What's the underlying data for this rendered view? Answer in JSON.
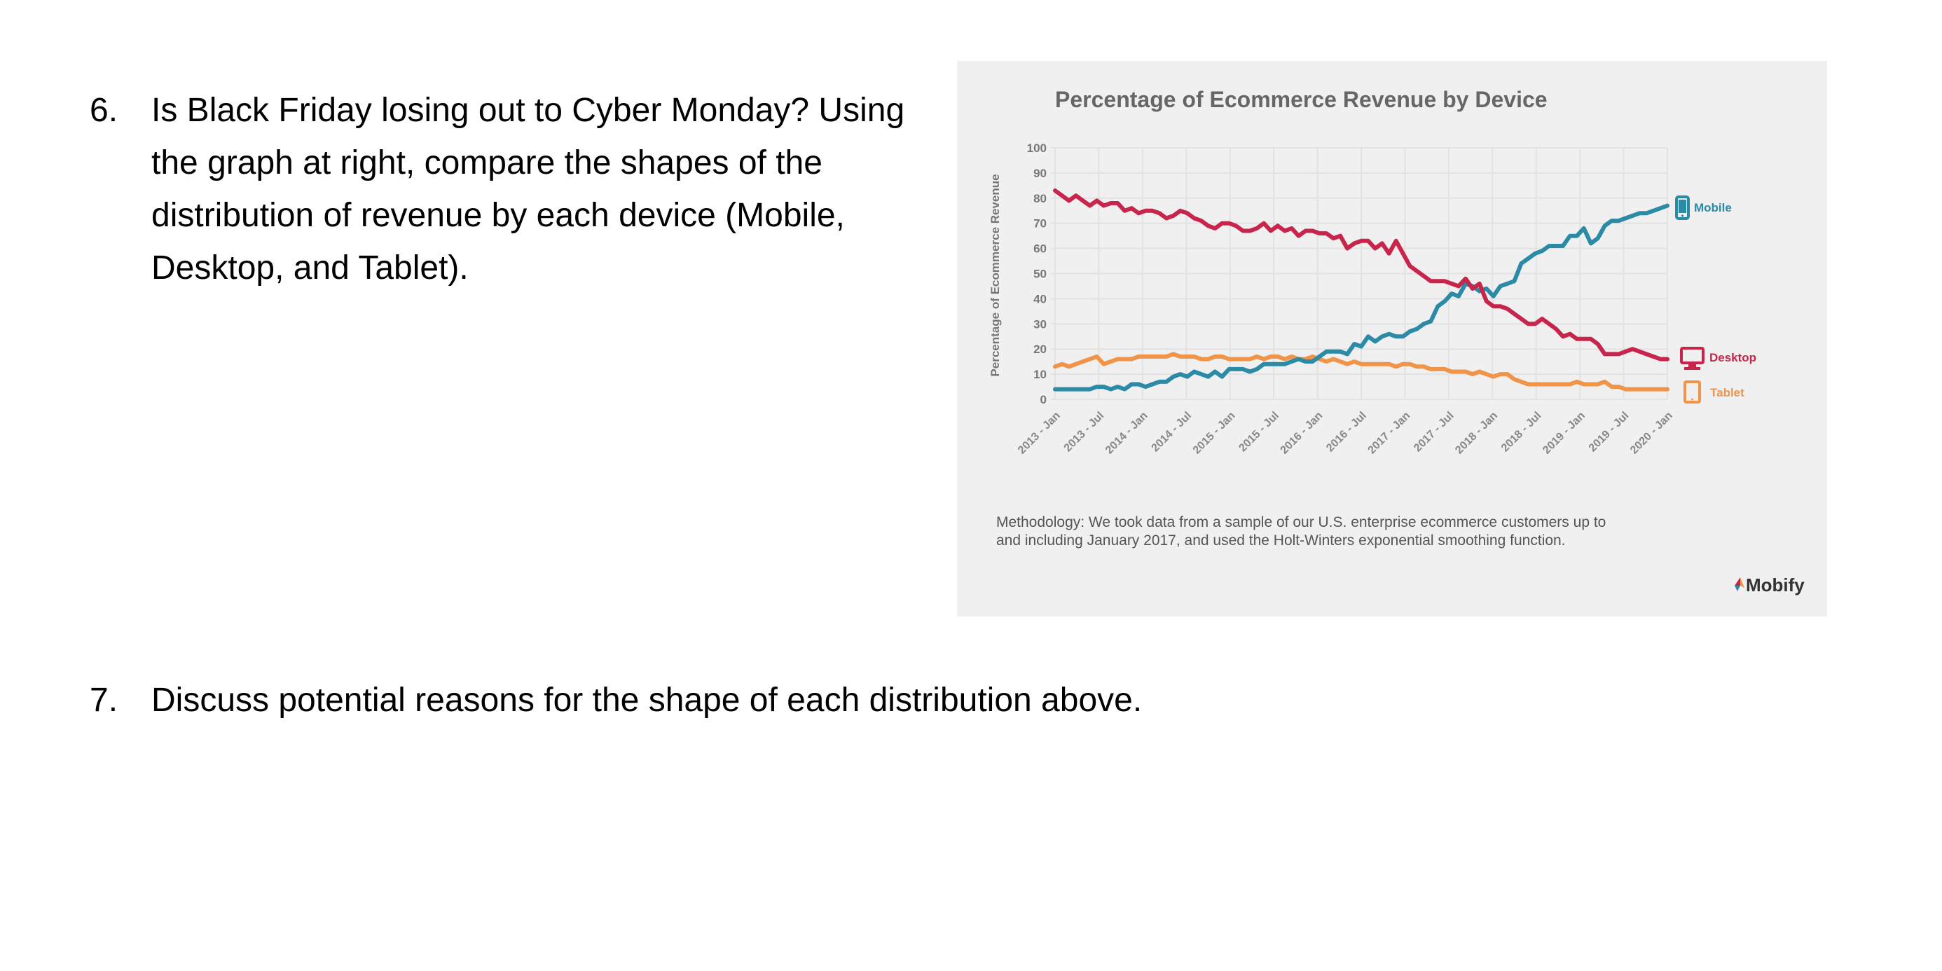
{
  "questions": [
    {
      "number": "6.",
      "text": "Is Black Friday losing out to Cyber Monday? Using the graph at right, compare the shapes of the distribution of revenue by each device (Mobile, Desktop, and Tablet)."
    },
    {
      "number": "7.",
      "text": "Discuss potential reasons for the shape of each distribution above."
    }
  ],
  "methodology": [
    "Methodology: We took data from a sample of our U.S. enterprise ecommerce customers up to",
    "and including January 2017, and used the Holt-Winters exponential smoothing function."
  ],
  "brand": "Mobify",
  "colors": {
    "mobile": "#2b8aa5",
    "desktop": "#c7254b",
    "tablet": "#f0944a",
    "panel": "#f0f0f0",
    "title": "#666666",
    "grid": "#e2e2e2"
  },
  "chart_data": {
    "type": "line",
    "title": "Percentage of Ecommerce Revenue by Device",
    "xlabel": "",
    "ylabel": "Percentage of Ecommerce Revenue",
    "ylim": [
      0,
      100
    ],
    "yticks": [
      "0",
      "10",
      "20",
      "30",
      "40",
      "50",
      "60",
      "70",
      "80",
      "90",
      "100"
    ],
    "xticks": [
      "2013 - Jan",
      "2013 - Jul",
      "2014 - Jan",
      "2014 - Jul",
      "2015 - Jan",
      "2015 - Jul",
      "2016 - Jan",
      "2016 - Jul",
      "2017 - Jan",
      "2017 - Jul",
      "2018 - Jan",
      "2018 - Jul",
      "2019 - Jan",
      "2019 - Jul",
      "2020 - Jan"
    ],
    "x_start": "2013 - Jan",
    "x_step": "1 month",
    "series": [
      {
        "name": "Mobile",
        "icon": "phone-icon",
        "values": [
          4,
          4,
          4,
          4,
          4,
          4,
          5,
          5,
          4,
          5,
          4,
          6,
          6,
          5,
          6,
          7,
          7,
          9,
          10,
          9,
          11,
          10,
          9,
          11,
          9,
          12,
          12,
          12,
          11,
          12,
          14,
          14,
          14,
          14,
          15,
          16,
          15,
          15,
          17,
          19,
          19,
          19,
          18,
          22,
          21,
          25,
          23,
          25,
          26,
          25,
          25,
          27,
          28,
          30,
          31,
          37,
          39,
          42,
          41,
          46,
          45,
          43,
          44,
          41,
          45,
          46,
          47,
          54,
          56,
          58,
          59,
          61,
          61,
          61,
          65,
          65,
          68,
          62,
          64,
          69,
          71,
          71,
          72,
          73,
          74,
          74,
          75,
          76,
          77
        ]
      },
      {
        "name": "Desktop",
        "icon": "monitor-icon",
        "values": [
          83,
          81,
          79,
          81,
          79,
          77,
          79,
          77,
          78,
          78,
          75,
          76,
          74,
          75,
          75,
          74,
          72,
          73,
          75,
          74,
          72,
          71,
          69,
          68,
          70,
          70,
          69,
          67,
          67,
          68,
          70,
          67,
          69,
          67,
          68,
          65,
          67,
          67,
          66,
          66,
          64,
          65,
          60,
          62,
          63,
          63,
          60,
          62,
          58,
          63,
          58,
          53,
          51,
          49,
          47,
          47,
          47,
          46,
          45,
          48,
          44,
          46,
          39,
          37,
          37,
          36,
          34,
          32,
          30,
          30,
          32,
          30,
          28,
          25,
          26,
          24,
          24,
          24,
          22,
          18,
          18,
          18,
          19,
          20,
          19,
          18,
          17,
          16,
          16
        ]
      },
      {
        "name": "Tablet",
        "icon": "tablet-icon",
        "values": [
          13,
          14,
          13,
          14,
          15,
          16,
          17,
          14,
          15,
          16,
          16,
          16,
          17,
          17,
          17,
          17,
          17,
          18,
          17,
          17,
          17,
          16,
          16,
          17,
          17,
          16,
          16,
          16,
          16,
          17,
          16,
          17,
          17,
          16,
          17,
          16,
          16,
          17,
          16,
          15,
          16,
          15,
          14,
          15,
          14,
          14,
          14,
          14,
          14,
          13,
          14,
          14,
          13,
          13,
          12,
          12,
          12,
          11,
          11,
          11,
          10,
          11,
          10,
          9,
          10,
          10,
          8,
          7,
          6,
          6,
          6,
          6,
          6,
          6,
          6,
          7,
          6,
          6,
          6,
          7,
          5,
          5,
          4,
          4,
          4,
          4,
          4,
          4,
          4
        ]
      }
    ]
  }
}
